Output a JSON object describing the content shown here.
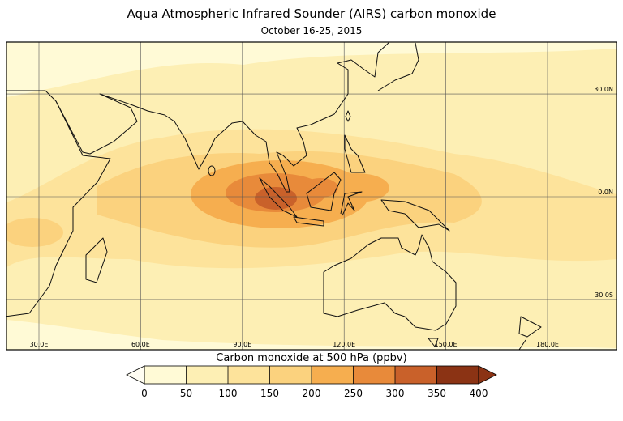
{
  "title": "Aqua Atmospheric Infrared Sounder (AIRS) carbon monoxide",
  "subtitle": "October 16-25, 2015",
  "map": {
    "lon_labels": [
      {
        "value": 30,
        "label": "30.0E"
      },
      {
        "value": 60,
        "label": "60.0E"
      },
      {
        "value": 90,
        "label": "90.0E"
      },
      {
        "value": 120,
        "label": "120.0E"
      },
      {
        "value": 150,
        "label": "150.0E"
      },
      {
        "value": 180,
        "label": "180.0E"
      }
    ],
    "lat_labels": [
      {
        "value": 30,
        "label": "30.0N"
      },
      {
        "value": 0,
        "label": "0.0N"
      },
      {
        "value": -30,
        "label": "30.0S"
      }
    ]
  },
  "colorbar": {
    "label": "Carbon monoxide at 500 hPa (ppbv)",
    "ticks": [
      0,
      50,
      100,
      150,
      200,
      250,
      300,
      350,
      400
    ],
    "colors": [
      "#fffad6",
      "#fdefb4",
      "#fde39b",
      "#fbd27e",
      "#f6ae4f",
      "#e88a3a",
      "#c9612a",
      "#8b3314"
    ],
    "under_color": "#fffdf2",
    "over_color": "#8b3314"
  }
}
